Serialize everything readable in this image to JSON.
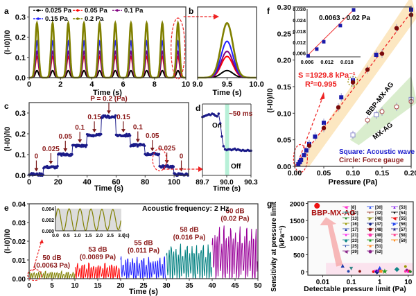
{
  "panel_labels": {
    "a": "a",
    "b": "b",
    "c": "c",
    "d": "d",
    "e": "e",
    "f": "f",
    "g": "g"
  },
  "chart_data": [
    {
      "id": "a",
      "type": "line",
      "xlabel": "Time (s)",
      "ylabel": "(I-I0)/I0",
      "xlim": [
        0,
        10
      ],
      "ylim": [
        0,
        0.35
      ],
      "xticks": [
        "0",
        "2",
        "4",
        "6",
        "8",
        "10"
      ],
      "yticks": [
        "0.0",
        "0.1",
        "0.2",
        "0.3"
      ],
      "legend_position": "top",
      "period_s": 1,
      "series": [
        {
          "name": "0.025 Pa",
          "color": "#000000",
          "peak": 0.035
        },
        {
          "name": "0.05 Pa",
          "color": "#ff0000",
          "peak": 0.105
        },
        {
          "name": "0.1 Pa",
          "color": "#800080",
          "peak": 0.13
        },
        {
          "name": "0.15 Pa",
          "color": "#1f1fff",
          "peak": 0.18
        },
        {
          "name": "0.2 Pa",
          "color": "#808000",
          "peak": 0.27
        }
      ]
    },
    {
      "id": "b",
      "type": "line",
      "xlabel": "Time (s)",
      "xlim": [
        9.0,
        10.0
      ],
      "xticks": [
        "9.0",
        "9.5",
        "10.0"
      ],
      "series_peaks": [
        0.035,
        0.105,
        0.13,
        0.18,
        0.27
      ]
    },
    {
      "id": "c",
      "type": "scatter",
      "xlabel": "Time (s)",
      "ylabel": "(I-I0)/I0",
      "xlim": [
        0,
        110
      ],
      "ylim": [
        0,
        0.35
      ],
      "xticks": [
        "0",
        "20",
        "40",
        "60",
        "80",
        "100"
      ],
      "yticks": [
        "0.0",
        "0.1",
        "0.2",
        "0.3"
      ],
      "steps": [
        {
          "t0": 0,
          "t1": 10,
          "value": 0.005,
          "label": "0"
        },
        {
          "t0": 10,
          "t1": 20,
          "value": 0.04,
          "label": "0.025"
        },
        {
          "t0": 20,
          "t1": 30,
          "value": 0.1,
          "label": "0.05"
        },
        {
          "t0": 30,
          "t1": 40,
          "value": 0.143,
          "label": "0.1"
        },
        {
          "t0": 40,
          "t1": 50,
          "value": 0.193,
          "label": "0.15"
        },
        {
          "t0": 50,
          "t1": 60,
          "value": 0.282,
          "label": "P = 0.2 (Pa)"
        },
        {
          "t0": 60,
          "t1": 70,
          "value": 0.193,
          "label": "0.15"
        },
        {
          "t0": 70,
          "t1": 80,
          "value": 0.145,
          "label": "0.1"
        },
        {
          "t0": 80,
          "t1": 90,
          "value": 0.103,
          "label": "0.05"
        },
        {
          "t0": 90,
          "t1": 100,
          "value": 0.043,
          "label": "0.025"
        },
        {
          "t0": 100,
          "t1": 110,
          "value": 0.005,
          "label": "0"
        }
      ]
    },
    {
      "id": "d",
      "type": "scatter",
      "xlabel": "Time (s)",
      "xlim": [
        89.7,
        90.3
      ],
      "xticks": [
        "89.7",
        "90.0",
        "90.3"
      ],
      "annotations": [
        "~50 ms",
        "On",
        "Off"
      ],
      "x": [
        89.7,
        89.72,
        89.74,
        89.76,
        89.78,
        89.8,
        89.82,
        89.84,
        89.86,
        89.88,
        89.9,
        89.92,
        89.94,
        89.96,
        89.98,
        90.0,
        90.02,
        90.04,
        90.06,
        90.08,
        90.1,
        90.12,
        90.14,
        90.16,
        90.18,
        90.2,
        90.22,
        90.24,
        90.26,
        90.28,
        90.3
      ],
      "y": [
        0.9,
        0.91,
        0.92,
        0.93,
        0.94,
        0.93,
        0.95,
        0.94,
        0.92,
        0.91,
        0.95,
        0.8,
        0.6,
        0.45,
        0.4,
        0.39,
        0.4,
        0.4,
        0.39,
        0.4,
        0.41,
        0.39,
        0.4,
        0.39,
        0.38,
        0.39,
        0.38,
        0.38,
        0.39,
        0.38,
        0.38
      ],
      "highlight_range": [
        89.98,
        90.03
      ]
    },
    {
      "id": "e",
      "type": "line",
      "xlabel": "Time (s)",
      "ylabel": "(I-I0)/I0",
      "xlim": [
        0,
        50
      ],
      "ylim": [
        0,
        0.04
      ],
      "xticks": [
        "0",
        "5",
        "10",
        "15",
        "20",
        "25",
        "30",
        "35",
        "40",
        "45",
        "50"
      ],
      "yticks": [
        "0.00",
        "0.01",
        "0.02",
        "0.03",
        "0.04"
      ],
      "title": "Acoustic frequency: 2 Hz",
      "segments": [
        {
          "t0": 0,
          "t1": 10,
          "amp": 0.004,
          "color": "#808000",
          "label_db": "50 dB",
          "label_pa": "(0.0063 Pa)"
        },
        {
          "t0": 10,
          "t1": 20,
          "amp": 0.0085,
          "color": "#ff0000",
          "label_db": "53 dB",
          "label_pa": "(0.0089 Pa)"
        },
        {
          "t0": 20,
          "t1": 30,
          "amp": 0.012,
          "color": "#1f1fff",
          "label_db": "55 dB",
          "label_pa": "(0.011 Pa)"
        },
        {
          "t0": 30,
          "t1": 40,
          "amp": 0.019,
          "color": "#008080",
          "label_db": "58 dB",
          "label_pa": "(0.016 Pa)"
        },
        {
          "t0": 40,
          "t1": 50,
          "amp": 0.029,
          "color": "#990099",
          "label_db": "60 dB",
          "label_pa": "(0.02 Pa)"
        }
      ],
      "inset": {
        "xlim": [
          0,
          3
        ],
        "ylim": [
          0,
          0.004
        ],
        "xticks": [
          "0.0",
          "0.5",
          "1.0",
          "1.5",
          "2.0",
          "2.5",
          "3.0"
        ],
        "yticks": [
          "0.000",
          "0.002",
          "0.004"
        ],
        "xunit": "(s)"
      }
    },
    {
      "id": "f",
      "type": "scatter",
      "xlabel": "Pressure (Pa)",
      "ylabel": "(I-I0)/I0",
      "xlim": [
        0,
        0.2
      ],
      "ylim": [
        0,
        0.3
      ],
      "xticks": [
        "0.00",
        "0.05",
        "0.10",
        "0.15",
        "0.20"
      ],
      "yticks": [
        "0.00",
        "0.05",
        "0.10",
        "0.15",
        "0.20",
        "0.25",
        "0.30"
      ],
      "annotations": {
        "sensitivity": "S =1929.8 kPa⁻¹",
        "r2": "R²=0.995",
        "band1": "BBP-MX-AG",
        "band2": "MX-AG",
        "legend_square": "Square: Acoustic wave",
        "legend_circle": "Circle: Force gauge"
      },
      "series": [
        {
          "name": "BBP-MX-AG acoustic",
          "marker": "square",
          "color": "#1a1aaa",
          "x": [
            0.0063,
            0.0089,
            0.011,
            0.016,
            0.02,
            0.025,
            0.035,
            0.05,
            0.08,
            0.1,
            0.14,
            0.2
          ],
          "y": [
            0.004,
            0.008,
            0.012,
            0.021,
            0.03,
            0.042,
            0.056,
            0.082,
            0.13,
            0.162,
            0.21,
            0.295
          ]
        },
        {
          "name": "BBP-MX-AG force",
          "marker": "circle",
          "color": "#7a0a0a",
          "x": [
            0.025,
            0.05,
            0.075,
            0.1,
            0.125,
            0.15,
            0.175,
            0.2
          ],
          "y": [
            0.039,
            0.072,
            0.111,
            0.158,
            0.182,
            0.212,
            0.26,
            0.285
          ]
        },
        {
          "name": "MX-AG acoustic",
          "marker": "open-square",
          "color": "#8888cc",
          "x": [
            0.1,
            0.14,
            0.2
          ],
          "y": [
            0.059,
            0.097,
            0.126
          ]
        },
        {
          "name": "MX-AG force",
          "marker": "open-circle",
          "color": "#aa4444",
          "x": [
            0.125,
            0.15,
            0.175,
            0.2
          ],
          "y": [
            0.087,
            0.103,
            0.112,
            0.122
          ]
        }
      ],
      "inset": {
        "title": "0.0063 - 0.02 Pa",
        "xlim": [
          0.006,
          0.02
        ],
        "ylim": [
          0.004,
          0.03
        ],
        "xticks": [
          "0.006",
          "0.012",
          "0.018"
        ],
        "yticks": [
          "0.006",
          "0.012",
          "0.018",
          "0.024",
          "0.030"
        ],
        "x": [
          0.0063,
          0.0089,
          0.011,
          0.016,
          0.02
        ],
        "y": [
          0.0045,
          0.0082,
          0.0122,
          0.021,
          0.0295
        ]
      }
    },
    {
      "id": "g",
      "type": "scatter",
      "xlabel": "Detectable pressure limit (Pa)",
      "ylabel": "Sensitivity at pressure limit (kPa⁻¹)",
      "xscale": "log",
      "xlim": [
        0.003,
        15
      ],
      "ylim": [
        -100,
        2050
      ],
      "xticks": [
        "0.01",
        "0.1",
        "1",
        "10"
      ],
      "yticks": [
        "0",
        "500",
        "1000",
        "1500",
        "2000"
      ],
      "highlight": {
        "label": "BBP-MX-AG",
        "x": 0.0063,
        "y": 1930,
        "color": "#ee1111"
      },
      "legend": [
        {
          "ref": "[8]",
          "color": "#ff33cc",
          "marker": "◀"
        },
        {
          "ref": "[12]",
          "color": "#338888",
          "marker": "▼"
        },
        {
          "ref": "[13]",
          "color": "#228822",
          "marker": "●"
        },
        {
          "ref": "[16]",
          "color": "#999900",
          "marker": "●"
        },
        {
          "ref": "[17]",
          "color": "#1a3aaa",
          "marker": "▲"
        },
        {
          "ref": "[21]",
          "color": "#ff22ee",
          "marker": "●"
        },
        {
          "ref": "[23]",
          "color": "#118888",
          "marker": "◆"
        },
        {
          "ref": "[25]",
          "color": "#2244aa",
          "marker": "◐"
        },
        {
          "ref": "[29]",
          "color": "#882288",
          "marker": "◀"
        },
        {
          "ref": "[30]",
          "color": "#2244ee",
          "marker": "▲"
        },
        {
          "ref": "[32]",
          "color": "#993322",
          "marker": "◐"
        },
        {
          "ref": "[46]",
          "color": "#999922",
          "marker": "▶"
        },
        {
          "ref": "[47]",
          "color": "#112288",
          "marker": "◆"
        },
        {
          "ref": "[48]",
          "color": "#881111",
          "marker": "⬣"
        },
        {
          "ref": "[49]",
          "color": "#ff33aa",
          "marker": "⬣"
        },
        {
          "ref": "[50]",
          "color": "#229922",
          "marker": "★"
        },
        {
          "ref": "[51]",
          "color": "#ff8822",
          "marker": "■"
        },
        {
          "ref": "[52]",
          "color": "#882288",
          "marker": "⬣"
        },
        {
          "ref": "[53]",
          "color": "#8822ee",
          "marker": "▲"
        },
        {
          "ref": "[54]",
          "color": "#111111",
          "marker": "▼"
        },
        {
          "ref": "[55]",
          "color": "#ee1111",
          "marker": "◀"
        },
        {
          "ref": "[56]",
          "color": "#2244ee",
          "marker": "▶"
        },
        {
          "ref": "[57]",
          "color": "#222288",
          "marker": "★"
        },
        {
          "ref": "[58]",
          "color": "#ff3388",
          "marker": "■"
        },
        {
          "ref": "[59]",
          "color": "#ff8811",
          "marker": "▼"
        }
      ],
      "points": [
        {
          "x": 0.05,
          "y": 180,
          "color": "#1a3aaa",
          "m": "▲"
        },
        {
          "x": 0.1,
          "y": 100,
          "color": "#338888",
          "m": "▼"
        },
        {
          "x": 0.08,
          "y": 20,
          "color": "#2244aa",
          "m": "●"
        },
        {
          "x": 0.2,
          "y": 20,
          "color": "#881111",
          "m": "●"
        },
        {
          "x": 0.6,
          "y": 10,
          "color": "#ee1111",
          "m": "●"
        },
        {
          "x": 0.7,
          "y": 30,
          "color": "#ff22ee",
          "m": "●"
        },
        {
          "x": 0.8,
          "y": 15,
          "color": "#112288",
          "m": "◆"
        },
        {
          "x": 0.9,
          "y": 60,
          "color": "#8822ee",
          "m": "▲"
        },
        {
          "x": 1.0,
          "y": 120,
          "color": "#2244ee",
          "m": "▲"
        },
        {
          "x": 1.0,
          "y": 40,
          "color": "#882288",
          "m": "●"
        },
        {
          "x": 1.1,
          "y": 20,
          "color": "#ff8822",
          "m": "■"
        },
        {
          "x": 1.5,
          "y": 10,
          "color": "#229922",
          "m": "★"
        },
        {
          "x": 4.0,
          "y": 80,
          "color": "#118888",
          "m": "◆"
        },
        {
          "x": 8.0,
          "y": 160,
          "color": "#999900",
          "m": "●"
        },
        {
          "x": 8.0,
          "y": 20,
          "color": "#ff33aa",
          "m": "●"
        },
        {
          "x": 9.0,
          "y": 60,
          "color": "#882288",
          "m": "●"
        },
        {
          "x": 10.0,
          "y": 10,
          "color": "#ff22ee",
          "m": "●"
        },
        {
          "x": 11.0,
          "y": 30,
          "color": "#ee1111",
          "m": "●"
        },
        {
          "x": 12.0,
          "y": 10,
          "color": "#228822",
          "m": "●"
        }
      ]
    }
  ]
}
